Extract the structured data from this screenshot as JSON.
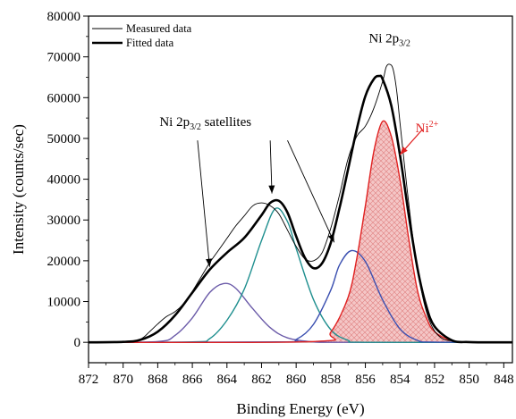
{
  "chart_data": {
    "type": "line",
    "title": "",
    "xlabel": "Binding Energy (eV)",
    "ylabel": "Intensity (counts/sec)",
    "xlim": [
      872,
      847.5
    ],
    "ylim": [
      -5000,
      80000
    ],
    "x_reversed": true,
    "grid": false,
    "x_ticks": [
      872,
      870,
      868,
      866,
      864,
      862,
      860,
      858,
      856,
      854,
      852,
      850,
      848
    ],
    "y_ticks": [
      0,
      10000,
      20000,
      30000,
      40000,
      50000,
      60000,
      70000,
      80000
    ],
    "legend": {
      "position": "top-left",
      "entries": [
        {
          "label": "Measured data",
          "style": "thin"
        },
        {
          "label": "Fitted data",
          "style": "thick"
        }
      ]
    },
    "series": [
      {
        "name": "Measured data",
        "color": "#000000",
        "x": [
          872,
          870,
          869,
          868.5,
          868,
          867.5,
          867,
          866.5,
          866,
          865.5,
          865,
          864.5,
          864,
          863.5,
          863,
          862.5,
          862,
          861.5,
          861,
          860.5,
          860,
          859.5,
          859,
          858.5,
          858,
          857.5,
          857,
          856.5,
          856,
          855.5,
          855,
          854.8,
          854.6,
          854.4,
          854.2,
          854,
          853.6,
          853.2,
          852.8,
          852.4,
          852,
          851.5,
          851,
          850.5,
          850,
          849,
          847.5
        ],
        "y": [
          0,
          0,
          800,
          2500,
          4500,
          6300,
          7500,
          9500,
          12500,
          16000,
          19500,
          22500,
          25500,
          28500,
          31000,
          33500,
          34200,
          33500,
          31500,
          27500,
          23500,
          20500,
          20000,
          22000,
          28000,
          36000,
          45000,
          50500,
          53000,
          57500,
          64000,
          67500,
          68200,
          67000,
          62000,
          54000,
          38000,
          24000,
          13500,
          6500,
          2800,
          800,
          400,
          200,
          100,
          0,
          0
        ]
      },
      {
        "name": "Fitted data",
        "color": "#000000",
        "x": [
          872,
          870,
          869,
          868,
          867,
          866,
          865,
          864,
          863,
          862,
          861.5,
          861,
          860.5,
          860,
          859.5,
          859,
          858.5,
          858,
          857.5,
          857,
          856.5,
          856,
          855.5,
          855.2,
          855,
          854.5,
          854,
          853.5,
          853,
          852.5,
          852,
          851,
          850,
          848,
          847.5
        ],
        "y": [
          0,
          100,
          600,
          2600,
          6600,
          12200,
          17800,
          22000,
          25600,
          31200,
          34200,
          34700,
          31800,
          26000,
          20800,
          18200,
          19400,
          24400,
          32800,
          42400,
          52200,
          60400,
          64600,
          65300,
          64500,
          58000,
          46000,
          31400,
          18400,
          9200,
          3900,
          500,
          50,
          0,
          0
        ]
      },
      {
        "name": "",
        "color": "#6a5aa8",
        "center": 864.2,
        "height": 14400,
        "fwhm": 2.8,
        "x": [
          872,
          868,
          867,
          866,
          865,
          864.2,
          863.5,
          862.5,
          861.5,
          860.5,
          859,
          857,
          847.5
        ],
        "y": [
          0,
          200,
          1700,
          6000,
          12200,
          14400,
          13300,
          8200,
          3600,
          1100,
          100,
          0,
          0
        ]
      },
      {
        "name": "",
        "color": "#1f8f8f",
        "center": 861.2,
        "height": 32800,
        "fwhm": 2.9,
        "x": [
          872,
          866,
          865,
          864,
          863,
          862,
          861.2,
          860.5,
          860,
          859,
          858,
          857,
          856,
          847.5
        ],
        "y": [
          0,
          100,
          900,
          5400,
          13000,
          25000,
          32800,
          29600,
          23000,
          10500,
          3100,
          500,
          0,
          0
        ]
      },
      {
        "name": "",
        "color": "#3a4fb0",
        "center": 856.8,
        "height": 22500,
        "fwhm": 3.0,
        "x": [
          872,
          861,
          860,
          859,
          858,
          857.5,
          856.8,
          856,
          855,
          854,
          853,
          852,
          847.5
        ],
        "y": [
          0,
          100,
          700,
          4400,
          12800,
          18900,
          22500,
          19800,
          10400,
          3300,
          500,
          50,
          0
        ]
      },
      {
        "name": "",
        "color": "#e02020",
        "fill": "#f4c6c6",
        "hatched": true,
        "center": 855.0,
        "height": 54200,
        "fwhm": 2.9,
        "x": [
          872,
          859,
          858,
          857,
          856.5,
          856,
          855.5,
          855,
          854.5,
          854,
          853.5,
          853,
          852.5,
          852,
          851,
          850,
          847.5
        ],
        "y": [
          0,
          200,
          2500,
          11000,
          20500,
          33500,
          47000,
          54200,
          50500,
          40000,
          25600,
          12900,
          6300,
          2600,
          400,
          50,
          0
        ]
      }
    ],
    "annotations": [
      {
        "name": "ni-2p32-label",
        "text": "Ni 2p",
        "sub": "3/2",
        "sup": "",
        "color": "#000000",
        "x": 855.8,
        "y": 73500
      },
      {
        "name": "ni2plus-label",
        "text": "Ni",
        "sub": "",
        "sup": "2+",
        "color": "#e02020",
        "x": 853.1,
        "y": 51500
      },
      {
        "name": "satellites-label",
        "text": "Ni 2p",
        "sub": "3/2",
        "sup": "",
        "tail": " satellites",
        "color": "#000000",
        "x": 867.9,
        "y": 53000
      }
    ],
    "arrows": [
      {
        "name": "satellite-arrow-1",
        "color": "#000000",
        "from": [
          865.7,
          49500
        ],
        "to": [
          865.0,
          18500
        ]
      },
      {
        "name": "satellite-arrow-2",
        "color": "#000000",
        "from": [
          861.5,
          49500
        ],
        "to": [
          861.4,
          36500
        ]
      },
      {
        "name": "satellite-arrow-3",
        "color": "#000000",
        "from": [
          860.5,
          49500
        ],
        "to": [
          857.8,
          24500
        ]
      },
      {
        "name": "ni2plus-arrow",
        "color": "#e02020",
        "from": [
          852.7,
          52200
        ],
        "to": [
          854.0,
          46000
        ]
      }
    ]
  }
}
